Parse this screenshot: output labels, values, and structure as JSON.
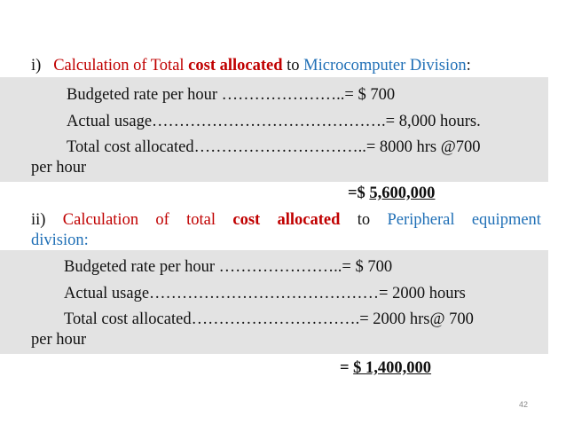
{
  "section1": {
    "heading_prefix": "i)",
    "heading_calc": "Calculation of Total",
    "heading_bold": "cost allocated",
    "heading_to": "to",
    "heading_division": "Microcomputer Division",
    "heading_colon": ":",
    "rate_line": "Budgeted rate per hour …………………..= $ 700",
    "usage_line": "Actual usage…………………………………….= 8,000 hours.",
    "total_line": "Total cost allocated…………………………..= 8000 hrs @700",
    "total_line_cont": "per hour",
    "result_prefix": "=$ ",
    "result_value": "5,600,000"
  },
  "section2": {
    "heading_words": [
      {
        "text": "ii)",
        "style": "dark"
      },
      {
        "text": "Calculation",
        "style": "red"
      },
      {
        "text": "of",
        "style": "red"
      },
      {
        "text": "total",
        "style": "red"
      },
      {
        "text": "cost",
        "style": "red-bold"
      },
      {
        "text": "allocated",
        "style": "red-bold"
      },
      {
        "text": "to",
        "style": "dark"
      },
      {
        "text": "Peripheral",
        "style": "blue"
      },
      {
        "text": "equipment",
        "style": "blue"
      }
    ],
    "heading_cont": "division:",
    "rate_line": "Budgeted rate per hour …………………..= $ 700",
    "usage_line": "Actual usage……………………………………=   2000 hours",
    "total_line": "Total cost allocated………………………….= 2000 hrs@ 700",
    "total_line_cont": "per hour",
    "result_prefix": "= ",
    "result_value": "$ 1,400,000"
  },
  "page_number": "42",
  "colors": {
    "red": "#c00000",
    "blue": "#1f6fb6",
    "band": "#e3e3e3",
    "text": "#111111"
  }
}
